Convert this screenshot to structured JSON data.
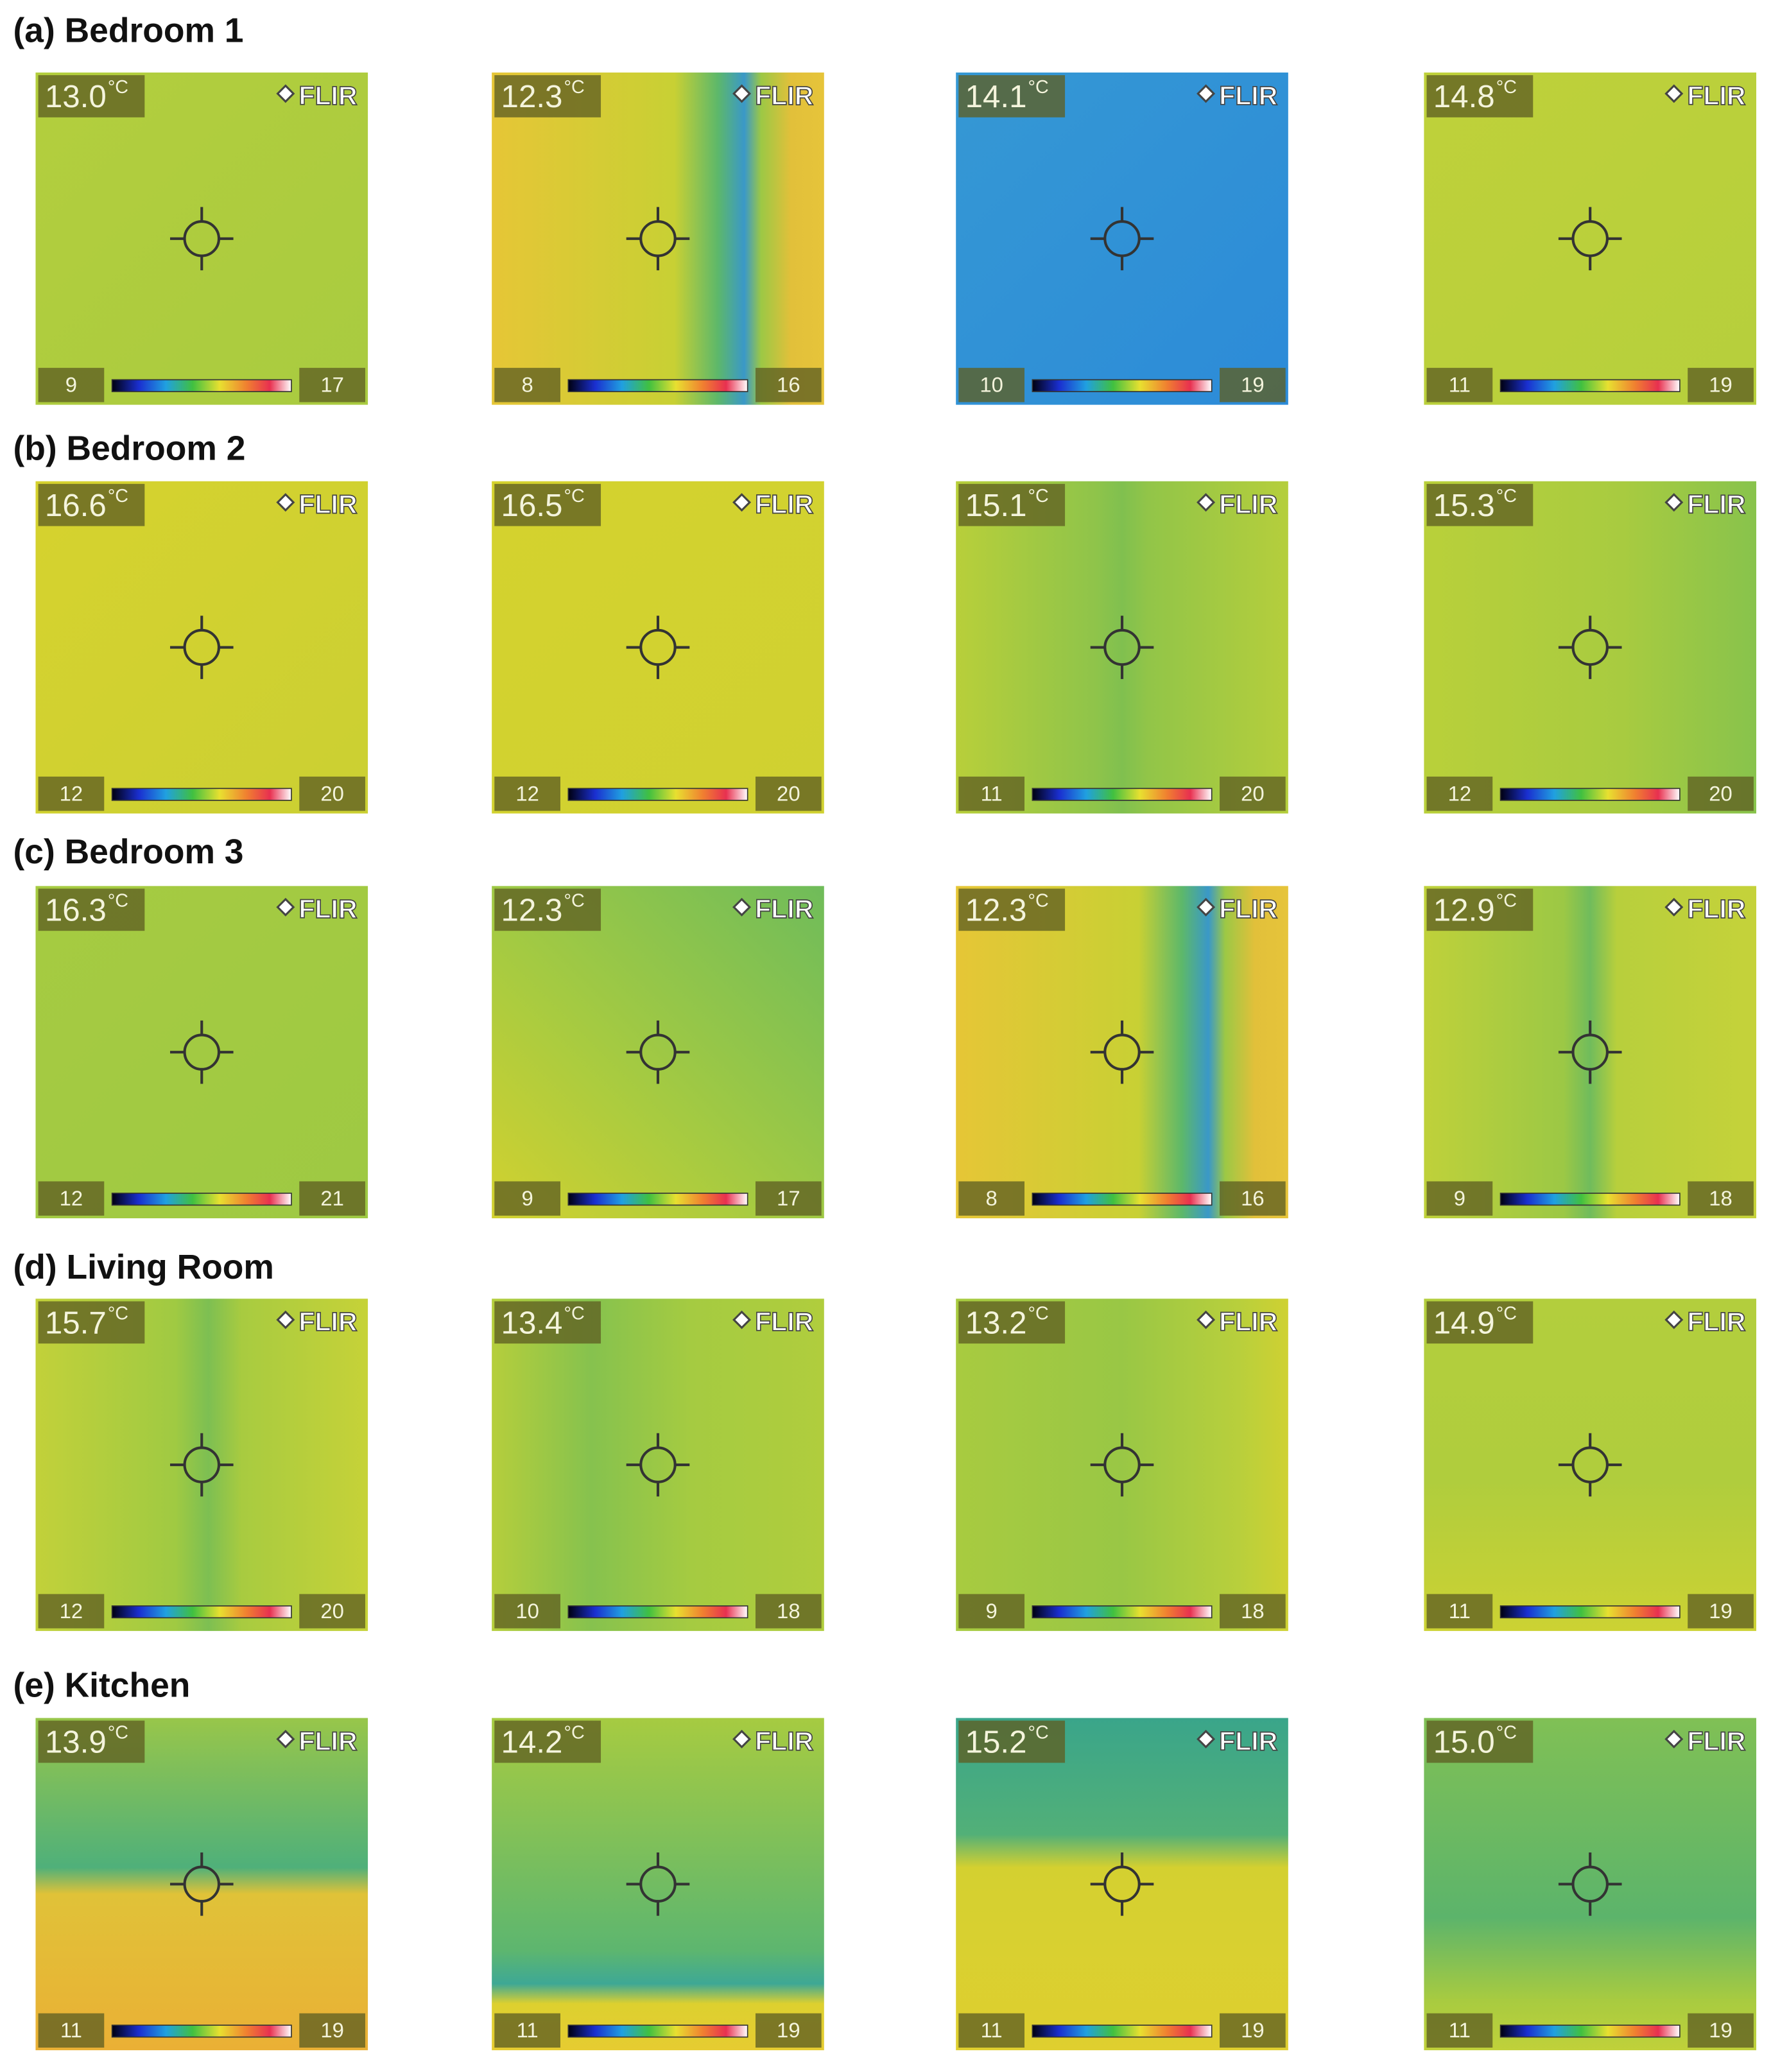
{
  "sections": [
    {
      "title": "(a) Bedroom 1",
      "images": [
        {
          "reading": "13.0",
          "min": 9,
          "max": 17
        },
        {
          "reading": "12.3",
          "min": 8,
          "max": 16
        },
        {
          "reading": "14.1",
          "min": 10,
          "max": 19
        },
        {
          "reading": "14.8",
          "min": 11,
          "max": 19
        }
      ]
    },
    {
      "title": "(b) Bedroom 2",
      "images": [
        {
          "reading": "16.6",
          "min": 12,
          "max": 20
        },
        {
          "reading": "16.5",
          "min": 12,
          "max": 20
        },
        {
          "reading": "15.1",
          "min": 11,
          "max": 20
        },
        {
          "reading": "15.3",
          "min": 12,
          "max": 20
        }
      ]
    },
    {
      "title": "(c) Bedroom 3",
      "images": [
        {
          "reading": "16.3",
          "min": 12,
          "max": 21
        },
        {
          "reading": "12.3",
          "min": 9,
          "max": 17
        },
        {
          "reading": "12.3",
          "min": 8,
          "max": 16
        },
        {
          "reading": "12.9",
          "min": 9,
          "max": 18
        }
      ]
    },
    {
      "title": "(d) Living Room",
      "images": [
        {
          "reading": "15.7",
          "min": 12,
          "max": 20
        },
        {
          "reading": "13.4",
          "min": 10,
          "max": 18
        },
        {
          "reading": "13.2",
          "min": 9,
          "max": 18
        },
        {
          "reading": "14.9",
          "min": 11,
          "max": 19
        }
      ]
    },
    {
      "title": "(e) Kitchen",
      "images": [
        {
          "reading": "13.9",
          "min": 11,
          "max": 19
        },
        {
          "reading": "14.2",
          "min": 11,
          "max": 19
        },
        {
          "reading": "15.2",
          "min": 11,
          "max": 19
        },
        {
          "reading": "15.0",
          "min": 11,
          "max": 19
        }
      ]
    }
  ],
  "unit": "°C",
  "brand": "FLIR"
}
